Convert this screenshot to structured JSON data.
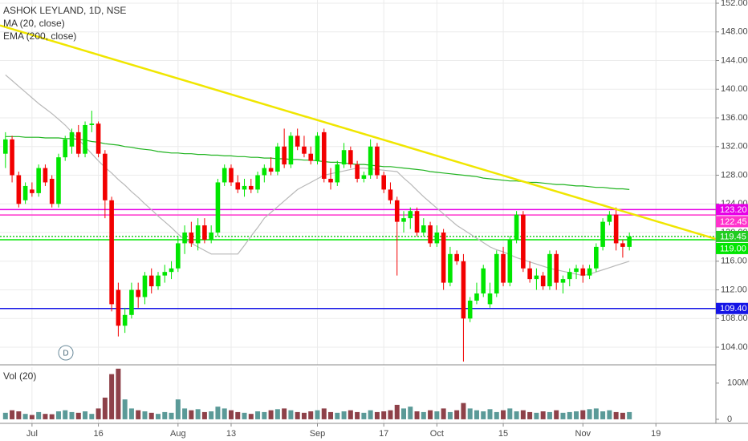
{
  "chart_data": {
    "type": "candlestick",
    "title": "ASHOK LEYLAND, 1D, NSE",
    "dividend_marker": "D",
    "categories": [
      null,
      null,
      null,
      null,
      "Jul",
      null,
      null,
      null,
      null,
      null,
      null,
      null,
      null,
      null,
      "16",
      null,
      null,
      null,
      null,
      null,
      null,
      null,
      null,
      null,
      null,
      null,
      "Aug",
      null,
      null,
      null,
      null,
      null,
      null,
      null,
      "13",
      null,
      null,
      null,
      null,
      null,
      null,
      null,
      null,
      null,
      null,
      null,
      null,
      "Sep",
      null,
      null,
      null,
      null,
      null,
      null,
      null,
      null,
      null,
      "17",
      null,
      null,
      null,
      null,
      null,
      null,
      null,
      "Oct",
      null,
      null,
      null,
      null,
      null,
      null,
      null,
      null,
      null,
      "15",
      null,
      null,
      null,
      null,
      null,
      null,
      null,
      null,
      null,
      null,
      null,
      "Nov",
      null,
      null,
      null,
      null,
      null,
      null,
      null,
      null,
      null,
      null,
      "19"
    ],
    "open": [
      131,
      133,
      128,
      124.5,
      126,
      125.5,
      129,
      127.5,
      124,
      130.5,
      132,
      134,
      131,
      135,
      135.2,
      131,
      124.5,
      112,
      107,
      108.5,
      112,
      111,
      114,
      112.5,
      114,
      114.5,
      115,
      118.5,
      120,
      118.5,
      121,
      119,
      120,
      127,
      129,
      127,
      126,
      126.5,
      126,
      128,
      129,
      128.5,
      132,
      129.5,
      133.5,
      132,
      131,
      130,
      134,
      127.5,
      127,
      129.5,
      131.5,
      129.5,
      127.5,
      128,
      132,
      128,
      126,
      124.5,
      121.5,
      122,
      123,
      120,
      121,
      118.5,
      120,
      113,
      117,
      116,
      108,
      110.5,
      111.5,
      110,
      111.5,
      117,
      113,
      119,
      122.5,
      115,
      113.5,
      114,
      112.5,
      117,
      113,
      113.5,
      114.5,
      115,
      114,
      115,
      118,
      121.5,
      122.5,
      118.5,
      118,
      null,
      null,
      null,
      null
    ],
    "high": [
      134,
      133.5,
      128.5,
      127,
      127,
      129.5,
      129.5,
      128,
      131,
      133.5,
      134.5,
      135,
      135.5,
      137,
      135.5,
      131.5,
      125,
      113,
      109.5,
      113,
      113,
      114.5,
      115,
      114.5,
      115.5,
      116,
      119.5,
      121,
      121.5,
      122,
      122,
      121,
      127.5,
      129.5,
      129.5,
      128,
      127.5,
      127.5,
      128.5,
      129.5,
      130.5,
      132.5,
      134.5,
      134,
      134.5,
      133.5,
      132,
      134,
      134.5,
      129,
      130,
      132.5,
      132,
      130,
      128.5,
      133,
      132.5,
      128.5,
      127,
      125,
      123,
      123.5,
      123.5,
      122,
      121.5,
      121,
      120.5,
      118,
      117.5,
      117,
      111,
      113,
      115.5,
      113,
      117.5,
      118,
      119.5,
      123,
      123,
      116,
      115,
      114.5,
      117.5,
      117.5,
      114,
      115,
      115.5,
      115.5,
      115.5,
      118.5,
      122,
      123,
      123.5,
      119,
      120,
      null,
      null,
      null,
      null
    ],
    "low": [
      129,
      127,
      123.5,
      124,
      125,
      125,
      126.5,
      123.5,
      123.5,
      130,
      131,
      130.5,
      130.5,
      134,
      130.5,
      122,
      109,
      105.5,
      106,
      108,
      109.5,
      110,
      111.5,
      112,
      113,
      113.5,
      114.5,
      117,
      118,
      117.5,
      118.5,
      118.5,
      119.5,
      126.5,
      126.5,
      125.5,
      125,
      125.5,
      125.5,
      127,
      128,
      128,
      129,
      129,
      131.5,
      130.5,
      129.5,
      129.5,
      127,
      126,
      126.5,
      129,
      129,
      127,
      127,
      127.5,
      127.5,
      125.5,
      124,
      114,
      120,
      120.5,
      119.5,
      119.5,
      118,
      118,
      112,
      112.5,
      115.5,
      102,
      107.5,
      110,
      111,
      109.5,
      111,
      112.5,
      112.5,
      118.5,
      114.5,
      113,
      112,
      112,
      112,
      112,
      111.5,
      112.5,
      113.5,
      113,
      113.5,
      114.5,
      117.5,
      121,
      117.5,
      116.5,
      117.5,
      null,
      null,
      null,
      null
    ],
    "close": [
      133,
      128,
      124,
      126.5,
      125.5,
      129,
      127,
      124,
      130.5,
      133,
      134,
      131,
      135,
      135.2,
      131,
      124.5,
      110,
      107,
      108.5,
      112,
      111,
      114,
      112.5,
      114,
      114.5,
      115,
      118.5,
      120,
      118.5,
      121,
      119,
      120,
      127,
      129,
      127,
      126,
      126.5,
      126,
      128,
      129,
      128.5,
      132,
      129.5,
      133.5,
      132,
      131,
      130,
      133.5,
      127.5,
      127,
      129.5,
      131.5,
      129.5,
      127.5,
      128,
      132,
      128,
      126,
      124.5,
      121.5,
      122,
      123,
      120,
      121,
      118.5,
      120,
      113,
      117,
      116,
      108,
      110.5,
      111.5,
      115,
      111.5,
      117,
      113,
      119,
      122.5,
      115,
      113.5,
      114,
      112.5,
      117,
      113,
      113.5,
      114.5,
      115,
      114,
      115,
      118,
      121.5,
      122.5,
      118.5,
      118,
      119.45,
      null,
      null,
      null,
      null
    ],
    "up_color": "#00e600",
    "down_color": "#f20000",
    "ylim": [
      101.54,
      152.45
    ],
    "yticks": [
      {
        "value": 104,
        "label": "104.00"
      },
      {
        "value": 108,
        "label": "108.00"
      },
      {
        "value": 112,
        "label": "112.00"
      },
      {
        "value": 116,
        "label": "116.00"
      },
      {
        "value": 120,
        "label": "120.00"
      },
      {
        "value": 124,
        "label": "124.00"
      },
      {
        "value": 128,
        "label": "128.00"
      },
      {
        "value": 132,
        "label": "132.00"
      },
      {
        "value": 136,
        "label": "136.00"
      },
      {
        "value": 140,
        "label": "140.00"
      },
      {
        "value": 144,
        "label": "144.00"
      },
      {
        "value": 148,
        "label": "148.00"
      },
      {
        "value": 152,
        "label": "152.00"
      }
    ],
    "grid": true,
    "series": [
      {
        "name": "MA (20, close)",
        "color": "#b8b8b8",
        "values": [
          142,
          141.2,
          140.4,
          139.6,
          138.8,
          138,
          137.3,
          136.6,
          135.8,
          135,
          134,
          133,
          132,
          131,
          130,
          129.1,
          128.3,
          127.4,
          126.6,
          125.7,
          124.9,
          124,
          123.2,
          122.3,
          121.5,
          120.7,
          119.8,
          119,
          118.5,
          118,
          117.5,
          117,
          117,
          117,
          117,
          117,
          118.2,
          119.5,
          120.7,
          122,
          122.8,
          123.6,
          124.4,
          125.2,
          126,
          126.5,
          127,
          127.5,
          128,
          128.2,
          128.4,
          128.6,
          128.8,
          129,
          129,
          128.9,
          128.8,
          128.7,
          128.6,
          128.5,
          127.6,
          126.8,
          125.9,
          125,
          124.2,
          123.4,
          122.6,
          121.8,
          121,
          120.4,
          119.8,
          119.2,
          118.6,
          118,
          117.6,
          117.3,
          116.9,
          116.5,
          116.2,
          115.9,
          115.6,
          115.3,
          115,
          114.8,
          114.6,
          114.4,
          114.2,
          114,
          114.2,
          114.5,
          114.8,
          115.1,
          115.4,
          115.7,
          116,
          null,
          null,
          null,
          null
        ]
      },
      {
        "name": "EMA (200, close)",
        "color": "#1fb31f",
        "values": [
          133.4,
          133.4,
          133.4,
          133.3,
          133.3,
          133.3,
          133.2,
          133.2,
          133.2,
          133.1,
          133.1,
          133.0,
          132.9,
          132.7,
          132.6,
          132.4,
          132.3,
          132.2,
          132.0,
          131.9,
          131.7,
          131.6,
          131.5,
          131.3,
          131.2,
          131.1,
          131.1,
          131.0,
          131.0,
          130.9,
          130.9,
          130.8,
          130.8,
          130.7,
          130.7,
          130.6,
          130.6,
          130.5,
          130.5,
          130.4,
          130.4,
          130.3,
          130.3,
          130.2,
          130.2,
          130.1,
          130.1,
          130.0,
          129.9,
          129.8,
          129.8,
          129.7,
          129.6,
          129.5,
          129.5,
          129.4,
          129.3,
          129.2,
          129.2,
          129.1,
          129.0,
          128.9,
          128.8,
          128.7,
          128.5,
          128.4,
          128.3,
          128.2,
          128.1,
          128.0,
          127.9,
          127.8,
          127.6,
          127.5,
          127.4,
          127.3,
          127.2,
          127.2,
          127.1,
          127.0,
          127.0,
          126.9,
          126.8,
          126.7,
          126.7,
          126.6,
          126.5,
          126.5,
          126.4,
          126.3,
          126.3,
          126.2,
          126.1,
          126.1,
          126.0,
          null,
          null,
          null,
          null
        ]
      }
    ],
    "levels": [
      {
        "value": 123.2,
        "label": "123.20",
        "color": "#e600e6",
        "style": "solid"
      },
      {
        "value": 122.45,
        "label": "122.45",
        "color": "#ff33cc",
        "style": "solid"
      },
      {
        "value": 119.45,
        "label": "119.45",
        "color": "#22cc22",
        "style": "dotted"
      },
      {
        "value": 119.0,
        "label": "119.00",
        "color": "#00e600",
        "style": "solid"
      },
      {
        "value": 109.4,
        "label": "109.40",
        "color": "#1414e6",
        "style": "solid"
      }
    ],
    "trendline": {
      "color": "#f0e600",
      "values": [
        148.9,
        119.1
      ]
    },
    "volume": {
      "name": "Vol (20)",
      "up_color": "#5b9a98",
      "down_color": "#8e4149",
      "ylim": [
        -9,
        144
      ],
      "yticks": [
        0,
        {
          "value": 100,
          "label": "100M"
        }
      ],
      "values": [
        18,
        25,
        22,
        15,
        12,
        20,
        15,
        14,
        22,
        25,
        20,
        18,
        22,
        15,
        30,
        60,
        125,
        140,
        55,
        30,
        25,
        22,
        18,
        15,
        20,
        18,
        55,
        30,
        25,
        28,
        20,
        22,
        35,
        30,
        25,
        20,
        18,
        15,
        22,
        20,
        25,
        28,
        30,
        25,
        20,
        18,
        22,
        25,
        30,
        20,
        18,
        22,
        25,
        20,
        18,
        25,
        20,
        22,
        25,
        40,
        30,
        35,
        22,
        20,
        25,
        22,
        30,
        20,
        25,
        45,
        30,
        25,
        22,
        28,
        20,
        25,
        30,
        22,
        25,
        20,
        18,
        22,
        20,
        25,
        18,
        20,
        22,
        25,
        28,
        30,
        22,
        25,
        20,
        18,
        20,
        null,
        null,
        null,
        null
      ]
    }
  }
}
